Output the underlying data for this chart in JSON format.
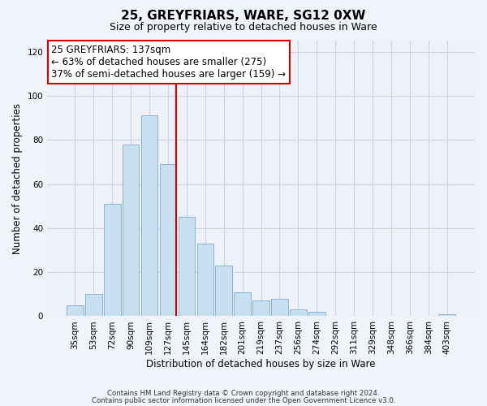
{
  "title": "25, GREYFRIARS, WARE, SG12 0XW",
  "subtitle": "Size of property relative to detached houses in Ware",
  "xlabel": "Distribution of detached houses by size in Ware",
  "ylabel": "Number of detached properties",
  "bar_color": "#c8dff0",
  "bar_edge_color": "#8ab4d4",
  "categories": [
    "35sqm",
    "53sqm",
    "72sqm",
    "90sqm",
    "109sqm",
    "127sqm",
    "145sqm",
    "164sqm",
    "182sqm",
    "201sqm",
    "219sqm",
    "237sqm",
    "256sqm",
    "274sqm",
    "292sqm",
    "311sqm",
    "329sqm",
    "348sqm",
    "366sqm",
    "384sqm",
    "403sqm"
  ],
  "values": [
    5,
    10,
    51,
    78,
    91,
    69,
    45,
    33,
    23,
    11,
    7,
    8,
    3,
    2,
    0,
    0,
    0,
    0,
    0,
    0,
    1
  ],
  "ylim": [
    0,
    125
  ],
  "yticks": [
    0,
    20,
    40,
    60,
    80,
    100,
    120
  ],
  "vline_x_index": 5,
  "vline_color": "#cc0000",
  "annotation_title": "25 GREYFRIARS: 137sqm",
  "annotation_line1": "← 63% of detached houses are smaller (275)",
  "annotation_line2": "37% of semi-detached houses are larger (159) →",
  "annotation_box_color": "#ffffff",
  "annotation_box_edge_color": "#cc0000",
  "footer1": "Contains HM Land Registry data © Crown copyright and database right 2024.",
  "footer2": "Contains public sector information licensed under the Open Government Licence v3.0.",
  "background_color": "#f0f4fa",
  "plot_background_color": "#eef2f8",
  "grid_color": "#c8d4e4"
}
